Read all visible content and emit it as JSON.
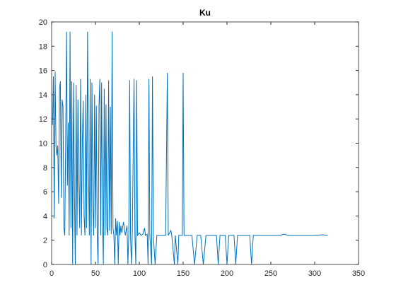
{
  "chart_data": {
    "type": "line",
    "title": "Ku",
    "color": "#0072bd",
    "x": [
      1,
      2,
      3,
      4,
      5,
      6,
      7,
      8,
      9,
      10,
      11,
      12,
      13,
      14,
      15,
      16,
      17,
      18,
      19,
      20,
      21,
      22,
      23,
      24,
      25,
      26,
      27,
      28,
      29,
      30,
      31,
      32,
      33,
      34,
      35,
      36,
      37,
      38,
      39,
      40,
      41,
      42,
      43,
      44,
      45,
      46,
      47,
      48,
      49,
      50,
      51,
      52,
      53,
      54,
      55,
      56,
      57,
      58,
      59,
      60,
      61,
      62,
      63,
      64,
      65,
      66,
      67,
      68,
      69,
      70,
      71,
      72,
      73,
      74,
      75,
      76,
      77,
      78,
      79,
      80,
      82,
      84,
      86,
      87,
      88,
      89,
      90,
      91,
      92,
      94,
      95,
      96,
      97,
      98,
      100,
      102,
      104,
      106,
      107,
      109,
      110,
      111,
      112,
      114,
      115,
      116,
      118,
      120,
      125,
      130,
      132,
      133,
      136,
      137,
      140,
      141,
      144,
      145,
      149,
      150,
      151,
      155,
      160,
      163,
      166,
      170,
      173,
      176,
      180,
      188,
      190,
      192,
      198,
      200,
      202,
      208,
      210,
      212,
      220,
      226,
      228,
      230,
      240,
      250,
      260,
      265,
      270,
      280,
      290,
      300,
      310,
      315
    ],
    "values": [
      11.5,
      15.5,
      3.8,
      15.9,
      9.8,
      9,
      9.8,
      5,
      14.5,
      15.1,
      5.5,
      13.6,
      13,
      3,
      2.4,
      10,
      19.2,
      6.5,
      11.7,
      2.4,
      19.2,
      3,
      15.1,
      0,
      15,
      6,
      0,
      14.8,
      2.4,
      13.6,
      7,
      3,
      15.3,
      2.4,
      10,
      13.5,
      4,
      2.4,
      14,
      3,
      19.2,
      8,
      2.4,
      15.3,
      0,
      15,
      5,
      2.4,
      14,
      3,
      13.1,
      2.4,
      0,
      13,
      15.3,
      2.4,
      15,
      4,
      0,
      14.5,
      2.4,
      13.2,
      3,
      2.4,
      15.2,
      2.8,
      13,
      2.5,
      19.2,
      3,
      2.4,
      0,
      3.8,
      2.4,
      3.6,
      0,
      3.5,
      2.4,
      3.2,
      2.6,
      3.5,
      2.4,
      3.2,
      0,
      2.5,
      15.2,
      2.4,
      0,
      2.5,
      15.3,
      2.4,
      0,
      15.2,
      2.4,
      2.6,
      2.4,
      2.5,
      3,
      2.4,
      2.5,
      0,
      15.3,
      2.4,
      0,
      15.5,
      2.4,
      0,
      2.4,
      2.4,
      2.4,
      15.8,
      2.4,
      2.8,
      2.4,
      0,
      2.4,
      0,
      2.4,
      2.4,
      15.8,
      2.4,
      2.4,
      2.4,
      0,
      2.4,
      2.4,
      0,
      2.4,
      2.4,
      2.4,
      0,
      2.4,
      2.4,
      0,
      2.4,
      2.4,
      0,
      2.4,
      2.4,
      2.4,
      0,
      2.4,
      2.4,
      2.4,
      2.4,
      2.5,
      2.4,
      2.4,
      2.4,
      2.4,
      2.45,
      2.4
    ],
    "xlim": [
      0,
      350
    ],
    "xticks": [
      0,
      50,
      100,
      150,
      200,
      250,
      300,
      350
    ],
    "ylim": [
      0,
      20
    ],
    "yticks": [
      0,
      2,
      4,
      6,
      8,
      10,
      12,
      14,
      16,
      18,
      20
    ]
  }
}
